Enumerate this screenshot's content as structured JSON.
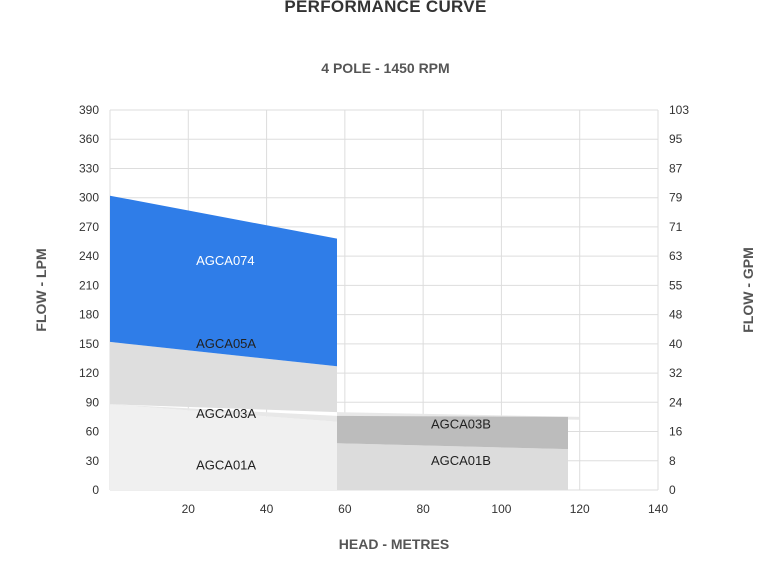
{
  "title": "PERFORMANCE CURVE",
  "subtitle": "4 POLE - 1450 RPM",
  "chart_data": {
    "type": "area",
    "title": "PERFORMANCE CURVE",
    "subtitle": "4 POLE - 1450 RPM",
    "xlabel": "HEAD - METRES",
    "ylabel_left": "FLOW - LPM",
    "ylabel_right": "FLOW - GPM",
    "xlim": [
      0,
      140
    ],
    "ylim": [
      0,
      390
    ],
    "x_ticks": [
      20,
      40,
      60,
      80,
      100,
      120,
      140
    ],
    "y_ticks_left": [
      0,
      30,
      60,
      90,
      120,
      150,
      180,
      210,
      240,
      270,
      300,
      330,
      360,
      390
    ],
    "y_ticks_right": [
      0,
      8,
      16,
      24,
      32,
      40,
      48,
      55,
      63,
      71,
      79,
      87,
      95,
      103
    ],
    "grid": true,
    "series": [
      {
        "name": "AGCA01A",
        "color": "#f0f0f0",
        "label_color": "#222222",
        "label_at": [
          22,
          25
        ],
        "polygon": [
          [
            0,
            0
          ],
          [
            0,
            88
          ],
          [
            58,
            70
          ],
          [
            58,
            0
          ]
        ]
      },
      {
        "name": "AGCA03A",
        "color": "#e8e8e8",
        "label_color": "#222222",
        "label_at": [
          22,
          78
        ],
        "polygon": [
          [
            0,
            88
          ],
          [
            58,
            70
          ],
          [
            58,
            80
          ],
          [
            120,
            75
          ],
          [
            120,
            72
          ],
          [
            58,
            76
          ]
        ]
      },
      {
        "name": "AGCA05A",
        "color": "#dedede",
        "label_color": "#222222",
        "label_at": [
          22,
          150
        ],
        "polygon": [
          [
            0,
            88
          ],
          [
            0,
            152
          ],
          [
            58,
            127
          ],
          [
            58,
            80
          ]
        ]
      },
      {
        "name": "AGCA01B",
        "color": "#dcdcdc",
        "label_color": "#222222",
        "label_at": [
          82,
          30
        ],
        "polygon": [
          [
            58,
            0
          ],
          [
            58,
            48
          ],
          [
            117,
            42
          ],
          [
            117,
            0
          ]
        ]
      },
      {
        "name": "AGCA03B",
        "color": "#bcbcbc",
        "label_color": "#222222",
        "label_at": [
          82,
          67
        ],
        "polygon": [
          [
            58,
            48
          ],
          [
            58,
            76
          ],
          [
            117,
            75
          ],
          [
            117,
            42
          ]
        ]
      },
      {
        "name": "AGCA074",
        "color": "#2f7de8",
        "label_color": "#ffffff",
        "label_at": [
          22,
          235
        ],
        "polygon": [
          [
            0,
            152
          ],
          [
            0,
            302
          ],
          [
            58,
            258
          ],
          [
            58,
            127
          ]
        ]
      }
    ]
  }
}
